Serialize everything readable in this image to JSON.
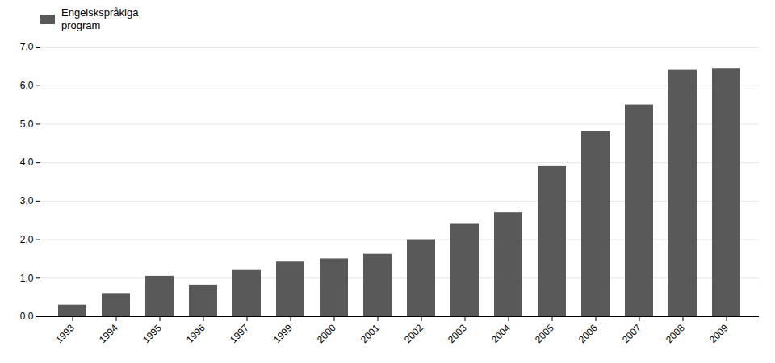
{
  "chart_data": {
    "type": "bar",
    "categories": [
      "1993",
      "1994",
      "1995",
      "1996",
      "1997",
      "1999",
      "2000",
      "2001",
      "2002",
      "2003",
      "2004",
      "2005",
      "2006",
      "2007",
      "2008",
      "2009"
    ],
    "series": [
      {
        "name": "Engelskspråkiga\nprogram",
        "color": "#595959",
        "values": [
          0.3,
          0.6,
          1.05,
          0.82,
          1.2,
          1.42,
          1.5,
          1.62,
          2.0,
          2.4,
          2.7,
          3.9,
          4.8,
          5.5,
          6.4,
          6.45
        ]
      }
    ],
    "ylim": [
      0,
      7.0
    ],
    "yticks": [
      {
        "value": 0.0,
        "label": "0,0"
      },
      {
        "value": 1.0,
        "label": "1,0"
      },
      {
        "value": 2.0,
        "label": "2,0"
      },
      {
        "value": 3.0,
        "label": "3,0"
      },
      {
        "value": 4.0,
        "label": "4,0"
      },
      {
        "value": 5.0,
        "label": "5,0"
      },
      {
        "value": 6.0,
        "label": "6,0"
      },
      {
        "value": 7.0,
        "label": "7,0"
      }
    ],
    "grid": true,
    "legend": "upper left"
  }
}
